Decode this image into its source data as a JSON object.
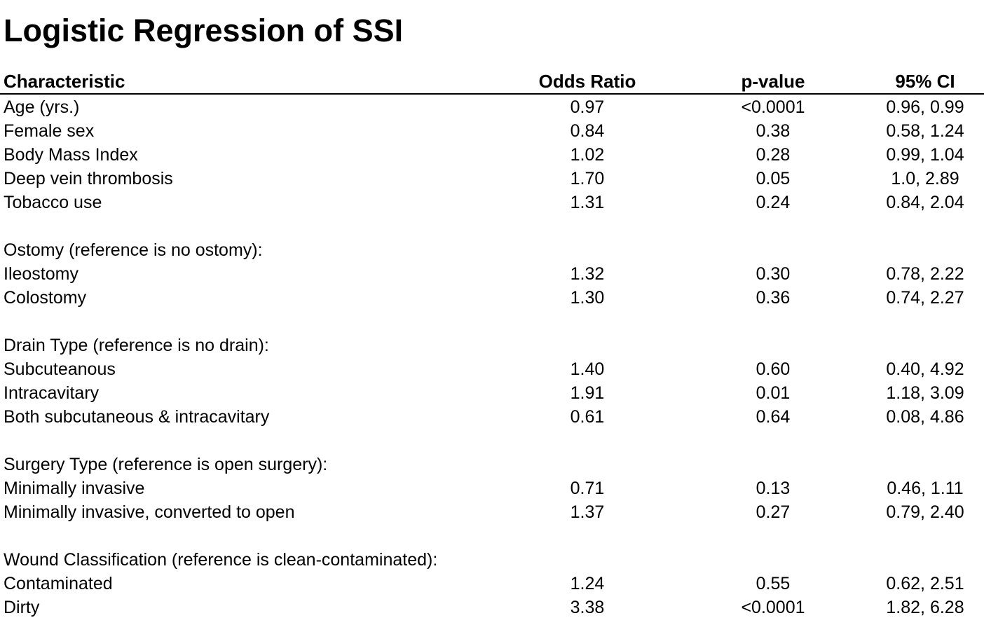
{
  "title": "Logistic Regression of SSI",
  "columns": {
    "characteristic": "Characteristic",
    "odds_ratio": "Odds Ratio",
    "p_value": "p-value",
    "ci": "95% CI"
  },
  "rows": [
    {
      "label": "Age (yrs.)",
      "or": "0.97",
      "p": "<0.0001",
      "ci": "0.96, 0.99"
    },
    {
      "label": "Female sex",
      "or": "0.84",
      "p": "0.38",
      "ci": "0.58, 1.24"
    },
    {
      "label": "Body Mass Index",
      "or": "1.02",
      "p": "0.28",
      "ci": "0.99, 1.04"
    },
    {
      "label": "Deep vein thrombosis",
      "or": "1.70",
      "p": "0.05",
      "ci": "1.0, 2.89"
    },
    {
      "label": "Tobacco use",
      "or": "1.31",
      "p": "0.24",
      "ci": "0.84, 2.04"
    },
    {
      "label": "",
      "or": "",
      "p": "",
      "ci": ""
    },
    {
      "label": "Ostomy (reference is no ostomy):",
      "or": "",
      "p": "",
      "ci": ""
    },
    {
      "label": "Ileostomy",
      "or": "1.32",
      "p": "0.30",
      "ci": "0.78, 2.22"
    },
    {
      "label": "Colostomy",
      "or": "1.30",
      "p": "0.36",
      "ci": "0.74, 2.27"
    },
    {
      "label": "",
      "or": "",
      "p": "",
      "ci": ""
    },
    {
      "label": "Drain Type (reference is no drain):",
      "or": "",
      "p": "",
      "ci": ""
    },
    {
      "label": "Subcuteanous",
      "or": "1.40",
      "p": "0.60",
      "ci": "0.40, 4.92"
    },
    {
      "label": "Intracavitary",
      "or": "1.91",
      "p": "0.01",
      "ci": "1.18, 3.09"
    },
    {
      "label": "Both subcutaneous & intracavitary",
      "or": "0.61",
      "p": "0.64",
      "ci": "0.08, 4.86"
    },
    {
      "label": "",
      "or": "",
      "p": "",
      "ci": ""
    },
    {
      "label": "Surgery Type (reference is open surgery):",
      "or": "",
      "p": "",
      "ci": ""
    },
    {
      "label": "Minimally invasive",
      "or": "0.71",
      "p": "0.13",
      "ci": "0.46, 1.11"
    },
    {
      "label": "Minimally invasive, converted to open",
      "or": "1.37",
      "p": "0.27",
      "ci": "0.79, 2.40"
    },
    {
      "label": "",
      "or": "",
      "p": "",
      "ci": ""
    },
    {
      "label": "Wound Classification (reference is clean-contaminated):",
      "or": "",
      "p": "",
      "ci": ""
    },
    {
      "label": "Contaminated",
      "or": "1.24",
      "p": "0.55",
      "ci": "0.62, 2.51"
    },
    {
      "label": "Dirty",
      "or": "3.38",
      "p": "<0.0001",
      "ci": "1.82, 6.28"
    }
  ]
}
